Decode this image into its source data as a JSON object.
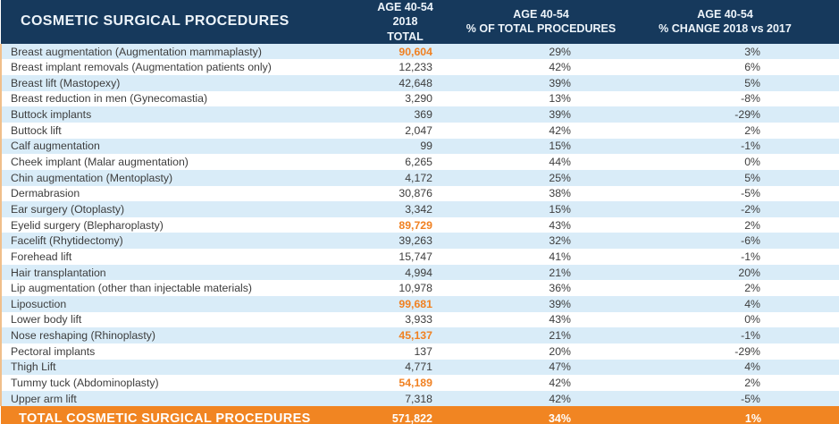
{
  "colors": {
    "header_bg": "#16395c",
    "stripe_blue": "#d9ecf8",
    "accent_orange": "#f08122",
    "footer_bg": "#f18522",
    "row_text": "#3d3d3d",
    "edge_border": "#f0bf8b",
    "header_text": "#edf4fa"
  },
  "table": {
    "header": {
      "col1": "COSMETIC SURGICAL PROCEDURES",
      "col2_line1": "AGE 40-54",
      "col2_line2": "2018 TOTAL",
      "col3_line1": "AGE 40-54",
      "col3_line2": "% OF TOTAL PROCEDURES",
      "col4_line1": "AGE 40-54",
      "col4_line2": "% CHANGE 2018 vs 2017"
    },
    "rows": [
      {
        "name": "Breast augmentation (Augmentation mammaplasty)",
        "total": "90,604",
        "pct_of_total": "29%",
        "pct_change": "3%",
        "highlight": true
      },
      {
        "name": "Breast implant removals (Augmentation patients only)",
        "total": "12,233",
        "pct_of_total": "42%",
        "pct_change": "6%",
        "highlight": false
      },
      {
        "name": "Breast lift (Mastopexy)",
        "total": "42,648",
        "pct_of_total": "39%",
        "pct_change": "5%",
        "highlight": false
      },
      {
        "name": "Breast reduction in men (Gynecomastia)",
        "total": "3,290",
        "pct_of_total": "13%",
        "pct_change": "-8%",
        "highlight": false
      },
      {
        "name": "Buttock implants",
        "total": "369",
        "pct_of_total": "39%",
        "pct_change": "-29%",
        "highlight": false
      },
      {
        "name": "Buttock lift",
        "total": "2,047",
        "pct_of_total": "42%",
        "pct_change": "2%",
        "highlight": false
      },
      {
        "name": "Calf augmentation",
        "total": "99",
        "pct_of_total": "15%",
        "pct_change": "-1%",
        "highlight": false
      },
      {
        "name": "Cheek implant (Malar augmentation)",
        "total": "6,265",
        "pct_of_total": "44%",
        "pct_change": "0%",
        "highlight": false
      },
      {
        "name": "Chin augmentation (Mentoplasty)",
        "total": "4,172",
        "pct_of_total": "25%",
        "pct_change": "5%",
        "highlight": false
      },
      {
        "name": "Dermabrasion",
        "total": "30,876",
        "pct_of_total": "38%",
        "pct_change": "-5%",
        "highlight": false
      },
      {
        "name": "Ear surgery (Otoplasty)",
        "total": "3,342",
        "pct_of_total": "15%",
        "pct_change": "-2%",
        "highlight": false
      },
      {
        "name": "Eyelid surgery (Blepharoplasty)",
        "total": "89,729",
        "pct_of_total": "43%",
        "pct_change": "2%",
        "highlight": true
      },
      {
        "name": "Facelift (Rhytidectomy)",
        "total": "39,263",
        "pct_of_total": "32%",
        "pct_change": "-6%",
        "highlight": false
      },
      {
        "name": "Forehead lift",
        "total": "15,747",
        "pct_of_total": "41%",
        "pct_change": "-1%",
        "highlight": false
      },
      {
        "name": "Hair transplantation",
        "total": "4,994",
        "pct_of_total": "21%",
        "pct_change": "20%",
        "highlight": false
      },
      {
        "name": "Lip augmentation (other than injectable materials)",
        "total": "10,978",
        "pct_of_total": "36%",
        "pct_change": "2%",
        "highlight": false
      },
      {
        "name": "Liposuction",
        "total": "99,681",
        "pct_of_total": "39%",
        "pct_change": "4%",
        "highlight": true
      },
      {
        "name": "Lower body lift",
        "total": "3,933",
        "pct_of_total": "43%",
        "pct_change": "0%",
        "highlight": false
      },
      {
        "name": "Nose reshaping (Rhinoplasty)",
        "total": "45,137",
        "pct_of_total": "21%",
        "pct_change": "-1%",
        "highlight": true
      },
      {
        "name": "Pectoral implants",
        "total": "137",
        "pct_of_total": "20%",
        "pct_change": "-29%",
        "highlight": false
      },
      {
        "name": "Thigh Lift",
        "total": "4,771",
        "pct_of_total": "47%",
        "pct_change": "4%",
        "highlight": false
      },
      {
        "name": "Tummy tuck (Abdominoplasty)",
        "total": "54,189",
        "pct_of_total": "42%",
        "pct_change": "2%",
        "highlight": true
      },
      {
        "name": "Upper arm lift",
        "total": "7,318",
        "pct_of_total": "42%",
        "pct_change": "-5%",
        "highlight": false
      }
    ],
    "footer": {
      "label": "TOTAL COSMETIC SURGICAL PROCEDURES",
      "total": "571,822",
      "pct_of_total": "34%",
      "pct_change": "1%"
    }
  },
  "chart_data": {
    "type": "table",
    "title": "Cosmetic Surgical Procedures — Age 40-54, 2018",
    "columns": [
      "Procedure",
      "Age 40-54 2018 Total",
      "Age 40-54 % of Total Procedures",
      "Age 40-54 % Change 2018 vs 2017"
    ],
    "categories": [
      "Breast augmentation (Augmentation mammaplasty)",
      "Breast implant removals (Augmentation patients only)",
      "Breast lift (Mastopexy)",
      "Breast reduction in men (Gynecomastia)",
      "Buttock implants",
      "Buttock lift",
      "Calf augmentation",
      "Cheek implant (Malar augmentation)",
      "Chin augmentation (Mentoplasty)",
      "Dermabrasion",
      "Ear surgery (Otoplasty)",
      "Eyelid surgery (Blepharoplasty)",
      "Facelift (Rhytidectomy)",
      "Forehead lift",
      "Hair transplantation",
      "Lip augmentation (other than injectable materials)",
      "Liposuction",
      "Lower body lift",
      "Nose reshaping (Rhinoplasty)",
      "Pectoral implants",
      "Thigh Lift",
      "Tummy tuck (Abdominoplasty)",
      "Upper arm lift"
    ],
    "series": [
      {
        "name": "2018 Total",
        "values": [
          90604,
          12233,
          42648,
          3290,
          369,
          2047,
          99,
          6265,
          4172,
          30876,
          3342,
          89729,
          39263,
          15747,
          4994,
          10978,
          99681,
          3933,
          45137,
          137,
          4771,
          54189,
          7318
        ]
      },
      {
        "name": "% of Total Procedures",
        "values": [
          29,
          42,
          39,
          13,
          39,
          42,
          15,
          44,
          25,
          38,
          15,
          43,
          32,
          41,
          21,
          36,
          39,
          43,
          21,
          20,
          47,
          42,
          42
        ]
      },
      {
        "name": "% Change 2018 vs 2017",
        "values": [
          3,
          6,
          5,
          -8,
          -29,
          2,
          -1,
          0,
          5,
          -5,
          -2,
          2,
          -6,
          -1,
          20,
          2,
          4,
          0,
          -1,
          -29,
          4,
          2,
          -5
        ]
      }
    ],
    "totals": {
      "2018 Total": 571822,
      "% of Total Procedures": 34,
      "% Change 2018 vs 2017": 1
    }
  }
}
